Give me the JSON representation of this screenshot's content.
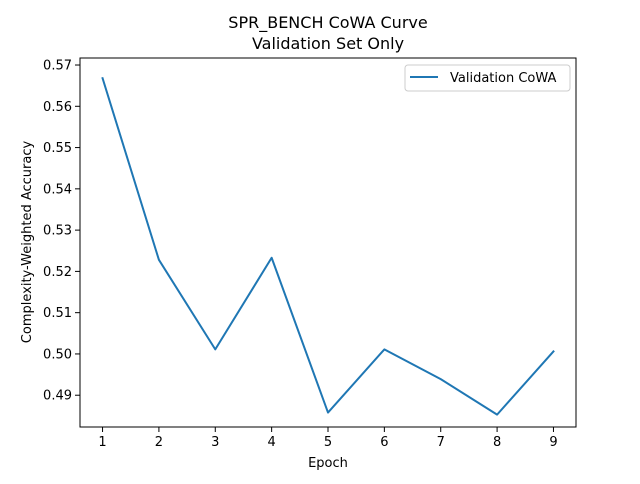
{
  "chart_data": {
    "type": "line",
    "title": "SPR_BENCH CoWA Curve",
    "subtitle": "Validation Set Only",
    "xlabel": "Epoch",
    "ylabel": "Complexity-Weighted Accuracy",
    "x": [
      1,
      2,
      3,
      4,
      5,
      6,
      7,
      8,
      9
    ],
    "xlim": [
      0.6,
      9.4
    ],
    "ylim": [
      0.4823,
      0.5717
    ],
    "xticks": [
      1,
      2,
      3,
      4,
      5,
      6,
      7,
      8,
      9
    ],
    "yticks": [
      0.49,
      0.5,
      0.51,
      0.52,
      0.53,
      0.54,
      0.55,
      0.56,
      0.57
    ],
    "ytick_labels": [
      "0.49",
      "0.50",
      "0.51",
      "0.52",
      "0.53",
      "0.54",
      "0.55",
      "0.56",
      "0.57"
    ],
    "grid": false,
    "legend_position": "upper right",
    "series": [
      {
        "name": "Validation CoWA",
        "color": "#1f77b4",
        "values": [
          0.5668,
          0.5228,
          0.5011,
          0.5233,
          0.4858,
          0.5011,
          0.4939,
          0.4853,
          0.5006
        ]
      }
    ]
  }
}
